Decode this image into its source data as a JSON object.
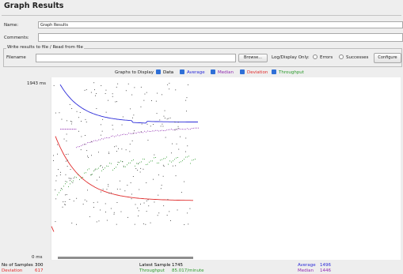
{
  "window": {
    "title": "Graph Results"
  },
  "form": {
    "name_label": "Name:",
    "name_value": "Graph Results",
    "comments_label": "Comments:",
    "comments_value": ""
  },
  "file_section": {
    "title": "Write results to file / Read from file",
    "filename_label": "Filename",
    "filename_value": "",
    "browse_label": "Browse...",
    "log_display_label": "Log/Display Only:",
    "errors_label": "Errors",
    "errors_checked": false,
    "successes_label": "Successes",
    "successes_checked": false,
    "configure_label": "Configure"
  },
  "graphs_to_display": {
    "label": "Graphs to Display",
    "items": [
      {
        "label": "Data",
        "checked": true,
        "color": "#000000"
      },
      {
        "label": "Average",
        "checked": true,
        "color": "#2b2bd9"
      },
      {
        "label": "Median",
        "checked": true,
        "color": "#8f2bb0"
      },
      {
        "label": "Deviation",
        "checked": true,
        "color": "#e02a2a"
      },
      {
        "label": "Throughput",
        "checked": true,
        "color": "#2a9a2a"
      }
    ]
  },
  "chart_data": {
    "type": "scatter",
    "y_max_label": "1943 ms",
    "y_min_label": "0 ms",
    "ylim": [
      0,
      1943
    ],
    "n_samples": 300,
    "series": [
      {
        "name": "Average",
        "color": "#2b2bd9",
        "kind": "line"
      },
      {
        "name": "Median",
        "color": "#8f2bb0",
        "kind": "dots"
      },
      {
        "name": "Deviation",
        "color": "#e02a2a",
        "kind": "line"
      },
      {
        "name": "Throughput",
        "color": "#2a9a2a",
        "kind": "dots"
      },
      {
        "name": "Data",
        "color": "#333333",
        "kind": "dots"
      }
    ]
  },
  "footer": {
    "samples_label": "No of Samples",
    "samples_value": "300",
    "deviation_label": "Deviation",
    "deviation_value": "617",
    "latest_label": "Latest Sample",
    "latest_value": "1745",
    "throughput_label": "Throughput",
    "throughput_value": "85.017/minute",
    "average_label": "Average",
    "average_value": "1496",
    "median_label": "Median",
    "median_value": "1446"
  }
}
